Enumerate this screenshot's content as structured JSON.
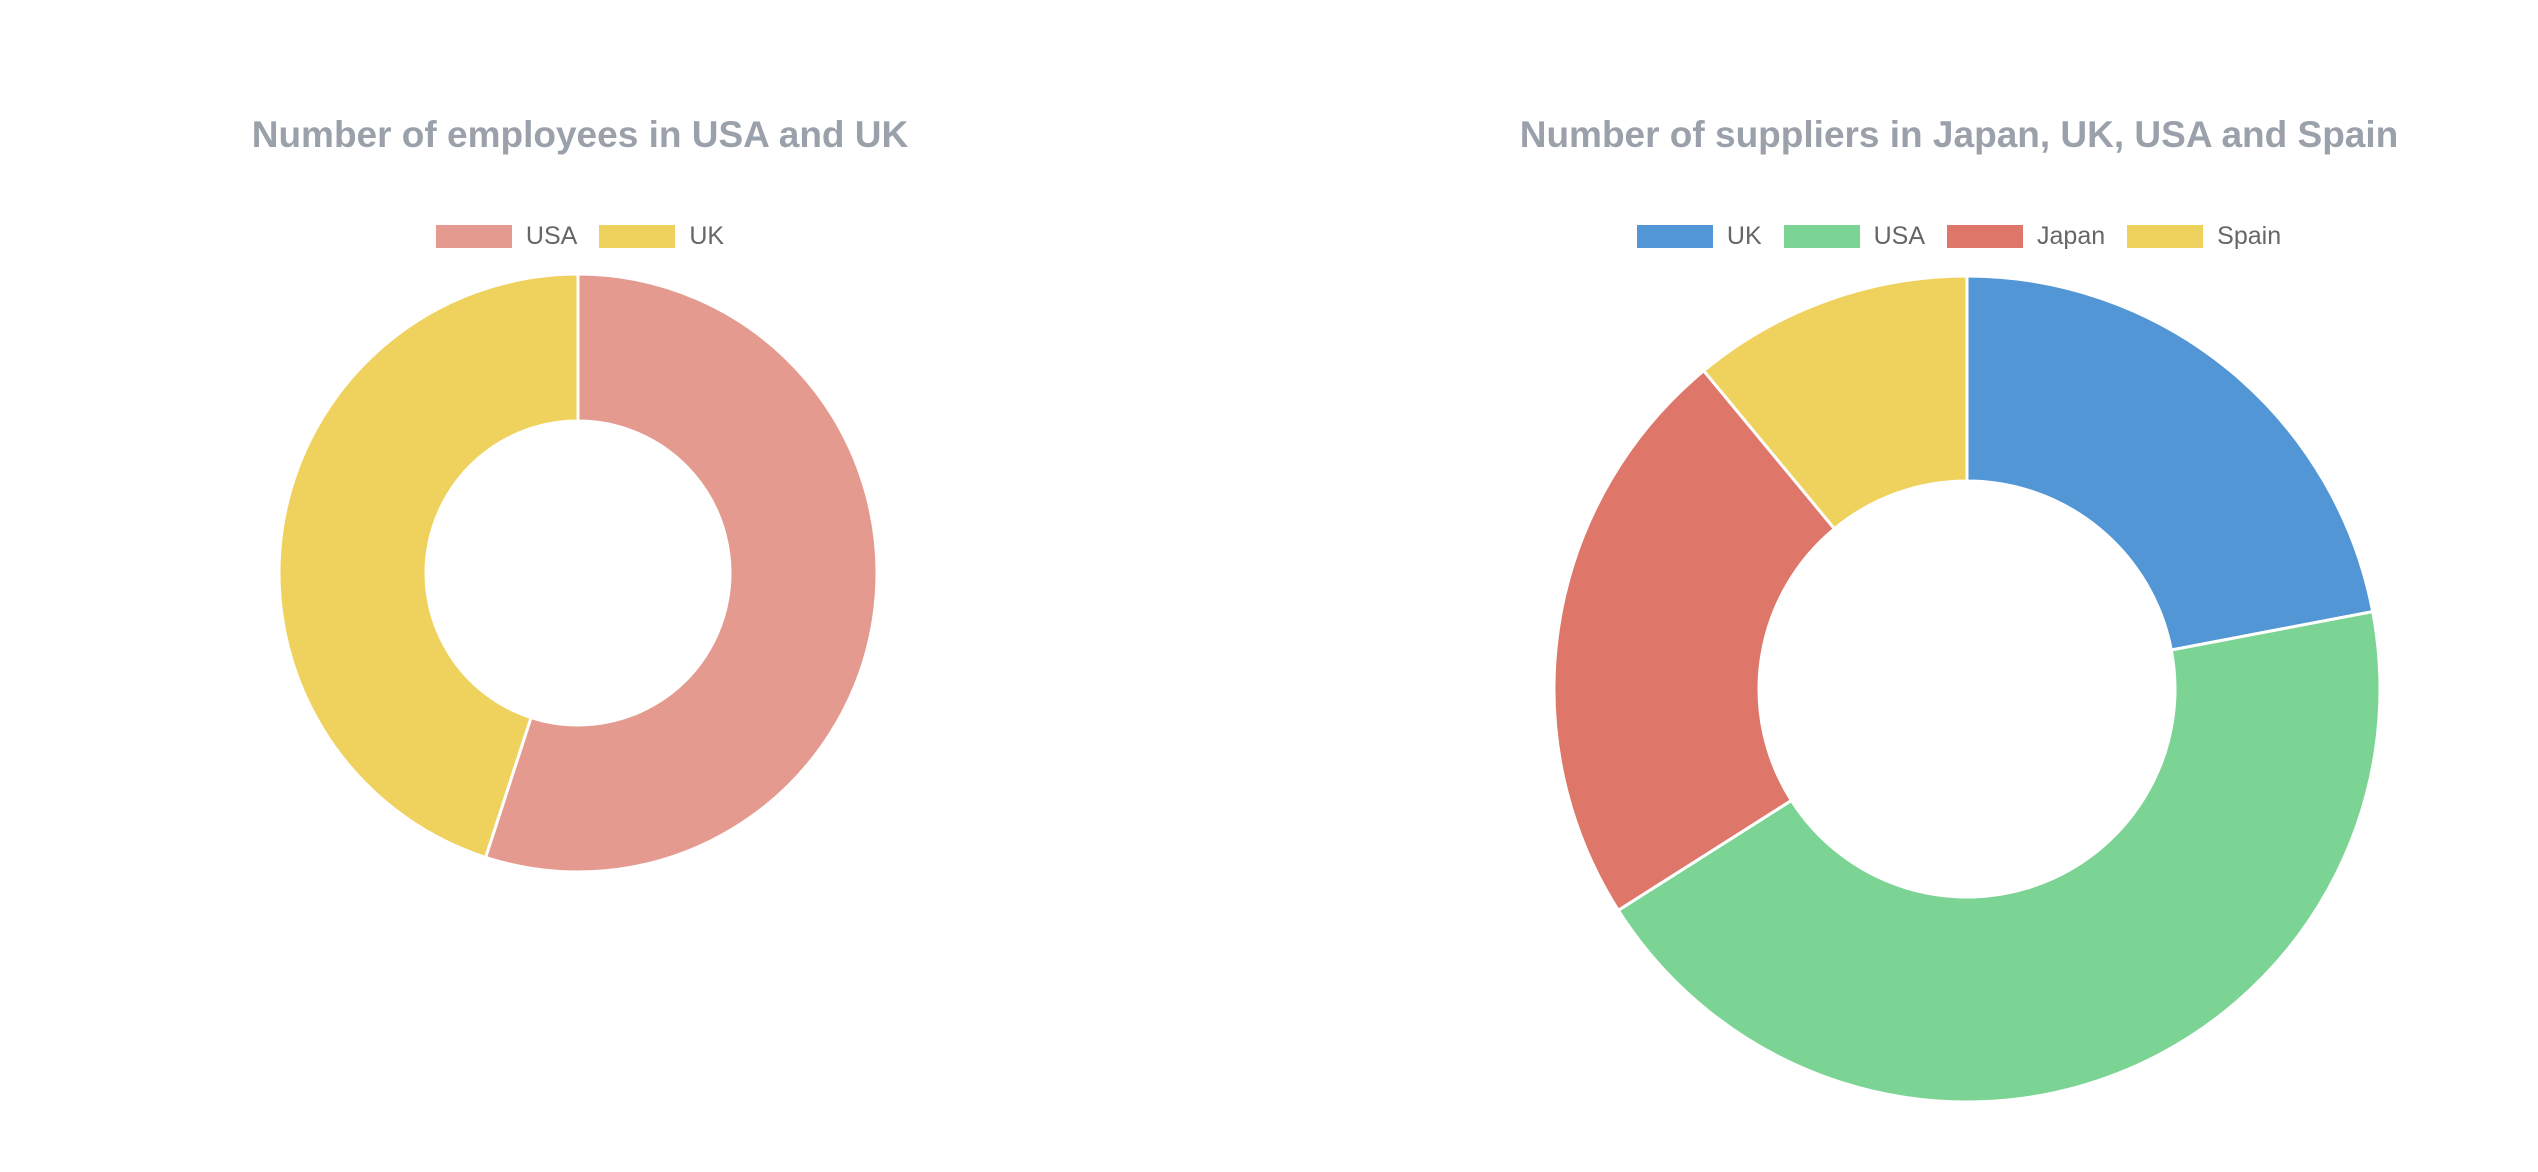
{
  "chart_data": [
    {
      "type": "pie",
      "variant": "doughnut",
      "title": "Number of employees in USA and UK",
      "legend": "top",
      "categories": [
        "USA",
        "UK"
      ],
      "values": [
        55,
        45
      ],
      "colors": [
        "#e49a8e",
        "#efd25d"
      ]
    },
    {
      "type": "pie",
      "variant": "doughnut",
      "title": "Number of suppliers in Japan, UK, USA and Spain",
      "legend": "top",
      "categories": [
        "UK",
        "USA",
        "Japan",
        "Spain"
      ],
      "values": [
        22,
        44,
        23,
        11
      ],
      "colors": [
        "#5296d5",
        "#7cd494",
        "#de7669",
        "#efd25d"
      ]
    }
  ]
}
